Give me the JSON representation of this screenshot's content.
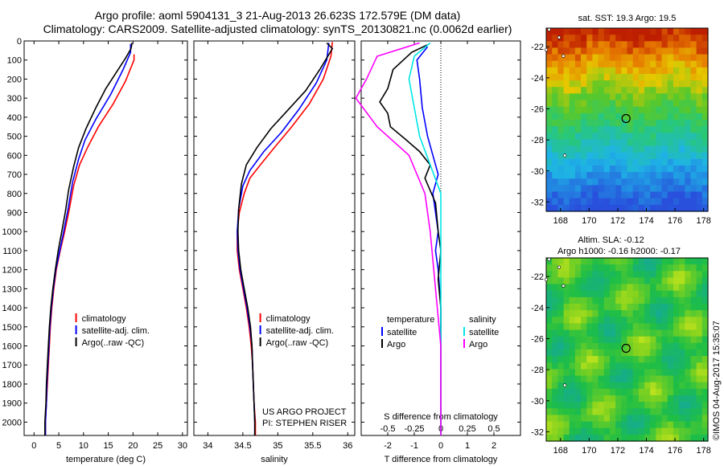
{
  "header": {
    "line1": "Argo profile: aoml 5904131_3 21-Aug-2013 26.623S 172.579E (DM data)",
    "line2": "Climatology: CARS2009. Satellite-adjusted climatology: synTS_20130821.nc (0.0062d earlier)"
  },
  "colors": {
    "climatology": "#ff0000",
    "satellite": "#0000ff",
    "argo": "#000000",
    "salinity_satellite": "#00e6e6",
    "salinity_argo": "#ff00ff"
  },
  "depth_axis": {
    "ticks": [
      "0",
      "100",
      "200",
      "300",
      "400",
      "500",
      "600",
      "700",
      "800",
      "900",
      "1000",
      "1100",
      "1200",
      "1300",
      "1400",
      "1500",
      "1600",
      "1700",
      "1800",
      "1900",
      "2000"
    ],
    "range": [
      0,
      2070
    ]
  },
  "chart_data": [
    {
      "type": "line",
      "id": "temperature",
      "xlabel": "temperature (deg C)",
      "xticks": [
        "0",
        "5",
        "10",
        "15",
        "20",
        "25",
        "30"
      ],
      "xlim": [
        -2,
        31
      ],
      "legend": [
        "climatology",
        "satellite-adj. clim.",
        "Argo(..raw -QC)"
      ],
      "series": [
        {
          "name": "climatology",
          "color": "#ff0000",
          "points": [
            [
              20.2,
              70
            ],
            [
              20.2,
              100
            ],
            [
              18.5,
              210
            ],
            [
              16,
              330
            ],
            [
              13,
              450
            ],
            [
              10.8,
              560
            ],
            [
              9.2,
              650
            ],
            [
              8,
              760
            ],
            [
              7,
              900
            ],
            [
              6.2,
              1000
            ],
            [
              5.3,
              1100
            ],
            [
              4.5,
              1200
            ],
            [
              4,
              1300
            ],
            [
              3.6,
              1400
            ],
            [
              3.3,
              1500
            ],
            [
              3.1,
              1600
            ],
            [
              2.9,
              1700
            ],
            [
              2.7,
              1800
            ],
            [
              2.5,
              1900
            ],
            [
              2.3,
              2000
            ],
            [
              2.3,
              2070
            ]
          ]
        },
        {
          "name": "satellite-adj. clim.",
          "color": "#0000ff",
          "points": [
            [
              19.5,
              15
            ],
            [
              19.5,
              60
            ],
            [
              18,
              150
            ],
            [
              15.5,
              280
            ],
            [
              12.5,
              410
            ],
            [
              10.3,
              520
            ],
            [
              9,
              620
            ],
            [
              7.8,
              740
            ],
            [
              6.9,
              880
            ],
            [
              6,
              1000
            ],
            [
              5.2,
              1100
            ],
            [
              4.4,
              1200
            ],
            [
              3.9,
              1300
            ],
            [
              3.5,
              1400
            ],
            [
              3.2,
              1500
            ],
            [
              3,
              1600
            ],
            [
              2.8,
              1700
            ],
            [
              2.6,
              1800
            ],
            [
              2.5,
              1900
            ],
            [
              2.3,
              2000
            ],
            [
              2.3,
              2070
            ]
          ]
        },
        {
          "name": "Argo(..raw -QC)",
          "color": "#000000",
          "points": [
            [
              19.8,
              10
            ],
            [
              19.6,
              40
            ],
            [
              18.5,
              90
            ],
            [
              16.5,
              170
            ],
            [
              14.5,
              250
            ],
            [
              12.5,
              350
            ],
            [
              10.5,
              460
            ],
            [
              9,
              560
            ],
            [
              8,
              660
            ],
            [
              7,
              780
            ],
            [
              6.3,
              900
            ],
            [
              5.6,
              1000
            ],
            [
              4.9,
              1100
            ],
            [
              4.3,
              1200
            ],
            [
              3.8,
              1300
            ],
            [
              3.4,
              1400
            ],
            [
              3.1,
              1500
            ],
            [
              2.9,
              1600
            ],
            [
              2.7,
              1700
            ],
            [
              2.5,
              1800
            ],
            [
              2.4,
              1900
            ],
            [
              2.2,
              2000
            ],
            [
              2.2,
              2070
            ]
          ]
        }
      ]
    },
    {
      "type": "line",
      "id": "salinity",
      "xlabel": "salinity",
      "xticks": [
        "34",
        "34.5",
        "35",
        "35.5",
        "36"
      ],
      "xlim": [
        33.8,
        36.1
      ],
      "legend": [
        "climatology",
        "satellite-adj. clim.",
        "Argo(..raw -QC)"
      ],
      "series": [
        {
          "name": "climatology",
          "color": "#ff0000",
          "points": [
            [
              35.78,
              5
            ],
            [
              35.76,
              80
            ],
            [
              35.65,
              200
            ],
            [
              35.45,
              330
            ],
            [
              35.2,
              450
            ],
            [
              34.95,
              560
            ],
            [
              34.75,
              650
            ],
            [
              34.6,
              720
            ],
            [
              34.52,
              800
            ],
            [
              34.45,
              900
            ],
            [
              34.42,
              1000
            ],
            [
              34.42,
              1100
            ],
            [
              34.45,
              1200
            ],
            [
              34.5,
              1300
            ],
            [
              34.55,
              1400
            ],
            [
              34.59,
              1500
            ],
            [
              34.62,
              1600
            ],
            [
              34.64,
              1700
            ],
            [
              34.65,
              1800
            ],
            [
              34.66,
              1900
            ],
            [
              34.68,
              2000
            ],
            [
              34.68,
              2070
            ]
          ]
        },
        {
          "name": "satellite-adj. clim.",
          "color": "#0000ff",
          "points": [
            [
              35.73,
              10
            ],
            [
              35.7,
              100
            ],
            [
              35.55,
              220
            ],
            [
              35.3,
              360
            ],
            [
              35.05,
              480
            ],
            [
              34.8,
              580
            ],
            [
              34.6,
              680
            ],
            [
              34.5,
              760
            ],
            [
              34.44,
              880
            ],
            [
              34.42,
              1000
            ],
            [
              34.43,
              1100
            ],
            [
              34.46,
              1200
            ],
            [
              34.51,
              1300
            ],
            [
              34.56,
              1400
            ],
            [
              34.6,
              1500
            ],
            [
              34.63,
              1600
            ],
            [
              34.64,
              1700
            ],
            [
              34.65,
              1800
            ],
            [
              34.66,
              1900
            ],
            [
              34.67,
              2000
            ],
            [
              34.67,
              2070
            ]
          ]
        },
        {
          "name": "Argo(..raw -QC)",
          "color": "#000000",
          "points": [
            [
              35.7,
              10
            ],
            [
              35.78,
              40
            ],
            [
              35.6,
              150
            ],
            [
              35.4,
              260
            ],
            [
              35.15,
              360
            ],
            [
              34.9,
              460
            ],
            [
              34.7,
              560
            ],
            [
              34.55,
              650
            ],
            [
              34.48,
              750
            ],
            [
              34.44,
              880
            ],
            [
              34.43,
              1000
            ],
            [
              34.44,
              1100
            ],
            [
              34.47,
              1200
            ],
            [
              34.52,
              1300
            ],
            [
              34.57,
              1400
            ],
            [
              34.61,
              1500
            ],
            [
              34.63,
              1600
            ],
            [
              34.64,
              1700
            ],
            [
              34.65,
              1800
            ],
            [
              34.66,
              1900
            ],
            [
              34.67,
              2000
            ],
            [
              34.67,
              2070
            ]
          ]
        }
      ]
    },
    {
      "type": "line",
      "id": "difference",
      "xlabel": "T difference from climatology",
      "xlabel2": "S difference from climatology",
      "xticks": [
        "-2",
        "-1",
        "0",
        "1",
        "2"
      ],
      "xticks_salinity": [
        "-0.5",
        "-0.25",
        "0",
        "0.25",
        "0.5"
      ],
      "xlim": [
        -3,
        3
      ],
      "legend_temperature": {
        "title": "temperature",
        "items": [
          "satellite",
          "Argo"
        ]
      },
      "legend_salinity": {
        "title": "salinity",
        "items": [
          "satellite",
          "Argo"
        ]
      },
      "series": [
        {
          "name": "temperature satellite",
          "color": "#0000ff",
          "points": [
            [
              -0.5,
              30
            ],
            [
              -0.9,
              100
            ],
            [
              -0.8,
              200
            ],
            [
              -0.7,
              350
            ],
            [
              -0.5,
              500
            ],
            [
              -0.3,
              600
            ],
            [
              -0.1,
              700
            ],
            [
              -0.3,
              800
            ],
            [
              -0.1,
              1000
            ],
            [
              -0.2,
              1100
            ],
            [
              -0.1,
              1200
            ],
            [
              -0.05,
              1300
            ],
            [
              0,
              1400
            ],
            [
              0,
              1600
            ],
            [
              0,
              2070
            ]
          ]
        },
        {
          "name": "temperature Argo",
          "color": "#000000",
          "points": [
            [
              -0.5,
              20
            ],
            [
              -1.1,
              60
            ],
            [
              -1.8,
              150
            ],
            [
              -2,
              250
            ],
            [
              -2.3,
              320
            ],
            [
              -2,
              380
            ],
            [
              -1.9,
              450
            ],
            [
              -1.3,
              520
            ],
            [
              -0.8,
              580
            ],
            [
              -0.4,
              650
            ],
            [
              -0.6,
              720
            ],
            [
              -0.2,
              850
            ],
            [
              -0.1,
              1000
            ],
            [
              0,
              1100
            ],
            [
              -0.1,
              1250
            ],
            [
              0,
              1400
            ],
            [
              0,
              2070
            ]
          ]
        },
        {
          "name": "salinity satellite",
          "color": "#00e6e6",
          "points": [
            [
              -0.1,
              10
            ],
            [
              -0.25,
              80
            ],
            [
              -0.3,
              200
            ],
            [
              -0.25,
              350
            ],
            [
              -0.2,
              500
            ],
            [
              -0.1,
              650
            ],
            [
              0,
              800
            ],
            [
              0,
              2070
            ]
          ]
        },
        {
          "name": "salinity Argo",
          "color": "#ff00ff",
          "points": [
            [
              -0.2,
              10
            ],
            [
              -0.6,
              80
            ],
            [
              -0.7,
              200
            ],
            [
              -0.8,
              300
            ],
            [
              -0.6,
              450
            ],
            [
              -0.3,
              600
            ],
            [
              -0.15,
              800
            ],
            [
              -0.1,
              1000
            ],
            [
              -0.05,
              1300
            ],
            [
              0,
              1600
            ],
            [
              0,
              2070
            ]
          ]
        }
      ]
    },
    {
      "type": "heatmap",
      "id": "sst-map",
      "title": "sat. SST: 19.3 Argo: 19.5",
      "xticks": [
        "168",
        "170",
        "172",
        "174",
        "176",
        "178"
      ],
      "yticks": [
        "-22",
        "-24",
        "-26",
        "-28",
        "-30",
        "-32"
      ],
      "xlim": [
        167,
        178.3
      ],
      "ylim": [
        -32.6,
        -20.8
      ],
      "profile": {
        "lon": 172.579,
        "lat": -26.623
      }
    },
    {
      "type": "heatmap",
      "id": "sla-map",
      "title": "Altim. SLA: -0.12",
      "subtitle": "Argo h1000: -0.16 h2000: -0.17",
      "xticks": [
        "168",
        "170",
        "172",
        "174",
        "176",
        "178"
      ],
      "yticks": [
        "-22",
        "-24",
        "-26",
        "-28",
        "-30",
        "-32"
      ],
      "xlim": [
        167,
        178.3
      ],
      "ylim": [
        -32.6,
        -20.8
      ],
      "profile": {
        "lon": 172.579,
        "lat": -26.623
      }
    }
  ],
  "credits": {
    "project": "US ARGO PROJECT",
    "pi": "PI: STEPHEN RISER",
    "stamp": "©IMOS 04-Aug-2017 15:35:07"
  }
}
